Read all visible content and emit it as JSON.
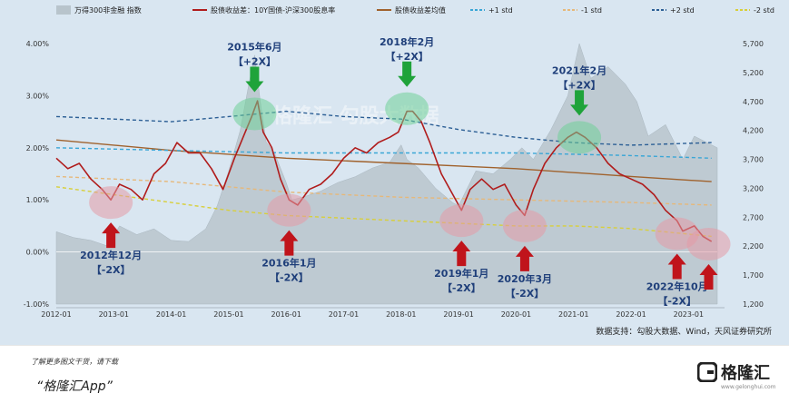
{
  "chart_data": {
    "type": "line",
    "legend": {
      "placement": "top",
      "items": [
        {
          "name": "万得300非金融 指数",
          "kind": "area",
          "color": "#b8c4cc"
        },
        {
          "name": "股债收益差：10Y国债-沪深300股息率",
          "kind": "line",
          "color": "#b01c1c"
        },
        {
          "name": "股债收益差均值",
          "kind": "line",
          "color": "#a0622d"
        },
        {
          "name": "+1 std",
          "kind": "dashed",
          "color": "#3aa6d6"
        },
        {
          "name": "-1 std",
          "kind": "dashed",
          "color": "#e6b87a"
        },
        {
          "name": "+2 std",
          "kind": "dashed",
          "color": "#2c5f95"
        },
        {
          "name": "-2 std",
          "kind": "dashed",
          "color": "#d8cf3a"
        }
      ]
    },
    "x_axis": {
      "start": 2012.0,
      "end": 2023.5,
      "tick_labels": [
        "2012-01",
        "2013-01",
        "2014-01",
        "2015-01",
        "2016-01",
        "2017-01",
        "2018-01",
        "2019-01",
        "2020-01",
        "2021-01",
        "2022-01",
        "2023-01"
      ],
      "tick_values": [
        2012,
        2013,
        2014,
        2015,
        2016,
        2017,
        2018,
        2019,
        2020,
        2021,
        2022,
        2023
      ]
    },
    "y_left": {
      "min": -1.0,
      "max": 4.0,
      "tick_values": [
        -1,
        0,
        1,
        2,
        3,
        4
      ],
      "tick_labels": [
        "-1.00%",
        "0.00%",
        "1.00%",
        "2.00%",
        "3.00%",
        "4.00%"
      ]
    },
    "y_right": {
      "min": 1200,
      "max": 5700,
      "tick_values": [
        1200,
        1700,
        2200,
        2700,
        3200,
        3700,
        4200,
        4700,
        5200,
        5700
      ],
      "tick_labels": [
        "1,200",
        "1,700",
        "2,200",
        "2,700",
        "3,200",
        "3,700",
        "4,200",
        "4,700",
        "5,200",
        "5,700"
      ]
    },
    "index_series": {
      "name": "万得300非金融 指数",
      "x": [
        2012.0,
        2012.3,
        2012.6,
        2012.9,
        2013.1,
        2013.4,
        2013.7,
        2014.0,
        2014.3,
        2014.6,
        2014.8,
        2015.0,
        2015.2,
        2015.35,
        2015.45,
        2015.55,
        2015.65,
        2015.8,
        2016.0,
        2016.1,
        2016.3,
        2016.6,
        2016.9,
        2017.2,
        2017.5,
        2017.8,
        2018.0,
        2018.1,
        2018.3,
        2018.6,
        2018.9,
        2019.0,
        2019.3,
        2019.6,
        2019.9,
        2020.1,
        2020.3,
        2020.6,
        2020.9,
        2021.1,
        2021.3,
        2021.6,
        2021.9,
        2022.1,
        2022.3,
        2022.6,
        2022.8,
        2022.9,
        2023.1,
        2023.3,
        2023.5
      ],
      "y": [
        2450,
        2350,
        2300,
        2200,
        2550,
        2400,
        2500,
        2300,
        2280,
        2500,
        2900,
        3500,
        4200,
        5000,
        5500,
        4700,
        4000,
        3800,
        3300,
        3000,
        3050,
        3150,
        3300,
        3400,
        3550,
        3650,
        3950,
        3700,
        3550,
        3200,
        2950,
        2900,
        3500,
        3450,
        3700,
        3900,
        3700,
        4200,
        4800,
        5700,
        5100,
        5300,
        5000,
        4700,
        4100,
        4300,
        3900,
        3700,
        4100,
        4000,
        3900
      ]
    },
    "series": [
      {
        "name": "股债收益差：10Y国债-沪深300股息率",
        "color": "#b01c1c",
        "x": [
          2012.0,
          2012.2,
          2012.4,
          2012.6,
          2012.8,
          2012.95,
          2013.1,
          2013.3,
          2013.5,
          2013.7,
          2013.9,
          2014.1,
          2014.3,
          2014.5,
          2014.7,
          2014.9,
          2015.1,
          2015.25,
          2015.4,
          2015.5,
          2015.6,
          2015.75,
          2015.9,
          2016.05,
          2016.2,
          2016.4,
          2016.6,
          2016.8,
          2017.0,
          2017.2,
          2017.4,
          2017.6,
          2017.8,
          2017.95,
          2018.1,
          2018.2,
          2018.35,
          2018.5,
          2018.7,
          2018.9,
          2019.05,
          2019.2,
          2019.4,
          2019.6,
          2019.8,
          2020.0,
          2020.15,
          2020.3,
          2020.5,
          2020.7,
          2020.9,
          2021.05,
          2021.2,
          2021.4,
          2021.6,
          2021.8,
          2022.0,
          2022.2,
          2022.4,
          2022.6,
          2022.8,
          2022.9,
          2023.1,
          2023.25,
          2023.4
        ],
        "y": [
          1.8,
          1.6,
          1.7,
          1.4,
          1.2,
          1.0,
          1.3,
          1.2,
          1.0,
          1.5,
          1.7,
          2.1,
          1.9,
          1.9,
          1.6,
          1.2,
          1.8,
          2.2,
          2.6,
          2.9,
          2.3,
          2.0,
          1.4,
          1.0,
          0.9,
          1.2,
          1.3,
          1.5,
          1.8,
          2.0,
          1.9,
          2.1,
          2.2,
          2.3,
          2.7,
          2.7,
          2.5,
          2.1,
          1.5,
          1.1,
          0.8,
          1.2,
          1.4,
          1.2,
          1.3,
          0.9,
          0.7,
          1.2,
          1.7,
          2.0,
          2.2,
          2.3,
          2.2,
          2.0,
          1.7,
          1.5,
          1.4,
          1.3,
          1.1,
          0.8,
          0.6,
          0.4,
          0.5,
          0.3,
          0.2
        ]
      },
      {
        "name": "股债收益差均值",
        "color": "#a0622d",
        "x": [
          2012.0,
          2014.0,
          2016.0,
          2018.0,
          2020.0,
          2022.0,
          2023.4
        ],
        "y": [
          2.15,
          1.95,
          1.8,
          1.7,
          1.6,
          1.45,
          1.35
        ]
      },
      {
        "name": "+1 std",
        "color": "#3aa6d6",
        "x": [
          2012.0,
          2014.0,
          2016.0,
          2018.0,
          2020.0,
          2022.0,
          2023.4
        ],
        "y": [
          2.0,
          1.95,
          1.9,
          1.9,
          1.9,
          1.85,
          1.8
        ]
      },
      {
        "name": "-1 std",
        "color": "#e6b87a",
        "x": [
          2012.0,
          2014.0,
          2016.0,
          2018.0,
          2020.0,
          2022.0,
          2023.4
        ],
        "y": [
          1.45,
          1.35,
          1.15,
          1.05,
          1.0,
          0.95,
          0.9
        ]
      },
      {
        "name": "+2 std",
        "color": "#2c5f95",
        "x": [
          2012.0,
          2013.0,
          2014.0,
          2015.0,
          2016.0,
          2017.0,
          2018.0,
          2019.0,
          2020.0,
          2021.0,
          2022.0,
          2023.4
        ],
        "y": [
          2.6,
          2.55,
          2.5,
          2.6,
          2.7,
          2.6,
          2.55,
          2.35,
          2.2,
          2.1,
          2.05,
          2.1
        ]
      },
      {
        "name": "-2 std",
        "color": "#d8cf3a",
        "x": [
          2012.0,
          2013.0,
          2014.0,
          2015.0,
          2016.0,
          2017.0,
          2018.0,
          2019.0,
          2020.0,
          2021.0,
          2022.0,
          2023.4
        ],
        "y": [
          1.25,
          1.1,
          0.95,
          0.8,
          0.7,
          0.65,
          0.6,
          0.55,
          0.5,
          0.5,
          0.45,
          0.3
        ]
      }
    ],
    "annotations": [
      {
        "date_label": "2015年6月",
        "tag": "【+2X】",
        "x": 2015.45,
        "y": 2.65,
        "dir": "down",
        "kind": "peak"
      },
      {
        "date_label": "2018年2月",
        "tag": "【+2X】",
        "x": 2018.1,
        "y": 2.75,
        "dir": "down",
        "kind": "peak"
      },
      {
        "date_label": "2021年2月",
        "tag": "【+2X】",
        "x": 2021.1,
        "y": 2.2,
        "dir": "down",
        "kind": "peak"
      },
      {
        "date_label": "2012年12月",
        "tag": "【-2X】",
        "x": 2012.95,
        "y": 0.95,
        "dir": "up",
        "kind": "trough"
      },
      {
        "date_label": "2016年1月",
        "tag": "【-2X】",
        "x": 2016.05,
        "y": 0.8,
        "dir": "up",
        "kind": "trough"
      },
      {
        "date_label": "2019年1月",
        "tag": "【-2X】",
        "x": 2019.05,
        "y": 0.6,
        "dir": "up",
        "kind": "trough"
      },
      {
        "date_label": "2020年3月",
        "tag": "【-2X】",
        "x": 2020.15,
        "y": 0.5,
        "dir": "up",
        "kind": "trough"
      },
      {
        "date_label": "2022年10月",
        "tag": "【-2X】",
        "x": 2022.8,
        "y": 0.35,
        "dir": "up",
        "kind": "trough"
      },
      {
        "date_label": "",
        "tag": "",
        "x": 2023.35,
        "y": 0.15,
        "dir": "up",
        "kind": "trough"
      }
    ],
    "source_note": "数据支持：勾股大数据、Wind，天风证券研究所",
    "watermark": "格隆汇 勾股大数据 www.gelonghui.com",
    "grid": false
  },
  "footer": {
    "note": "了解更多图文干货，请下载",
    "app": "“格隆汇App”",
    "brand": "格隆汇",
    "brand_sub": "www.gelonghui.com"
  }
}
